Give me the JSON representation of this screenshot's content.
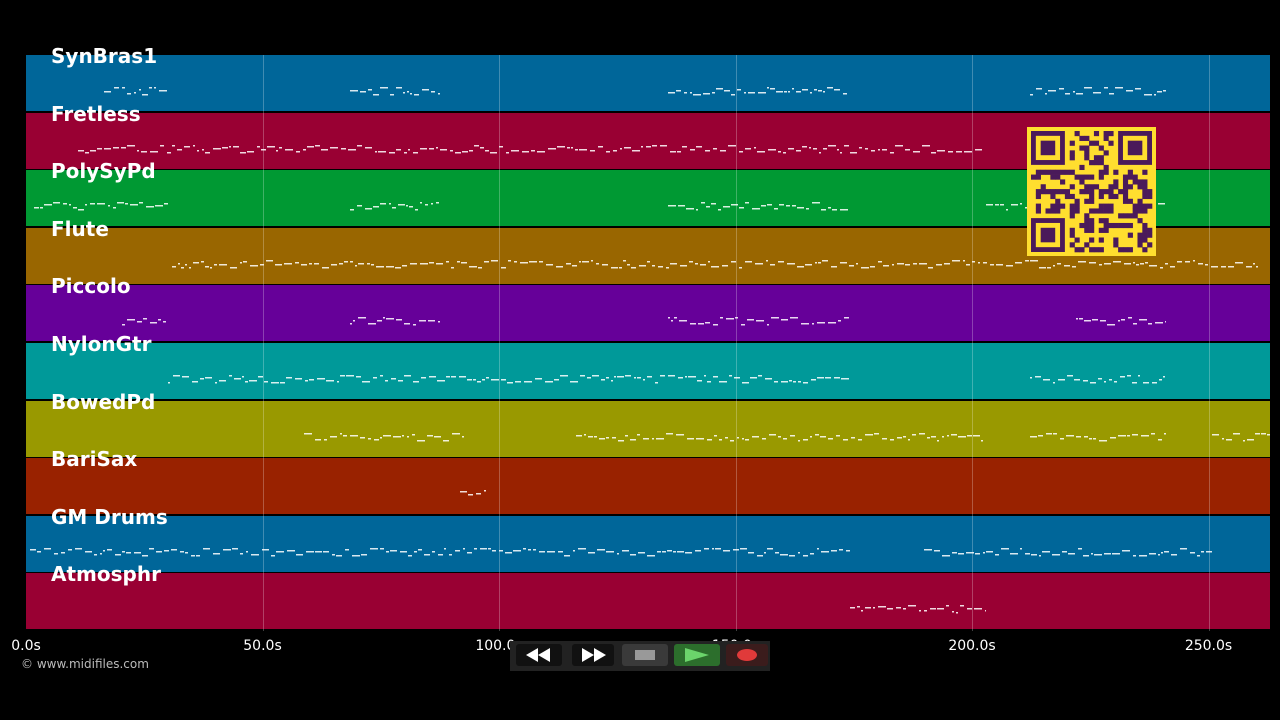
{
  "tracks": [
    {
      "name": "SynBras1",
      "color": "#006699"
    },
    {
      "name": "Fretless",
      "color": "#990033"
    },
    {
      "name": "PolySyPd",
      "color": "#009933"
    },
    {
      "name": "Flute",
      "color": "#996600"
    },
    {
      "name": "Piccolo",
      "color": "#660099"
    },
    {
      "name": "NylonGtr",
      "color": "#009999"
    },
    {
      "name": "BowedPd",
      "color": "#999900"
    },
    {
      "name": "BariSax",
      "color": "#992200"
    },
    {
      "name": "GM Drums",
      "color": "#006699"
    },
    {
      "name": "Atmosphr",
      "color": "#990033"
    }
  ],
  "timeline": {
    "ticks": [
      "0.0s",
      "50.0s",
      "100.0s",
      "150.0s",
      "200.0s",
      "250.0s"
    ]
  },
  "copyright": "© www.midifiles.com",
  "transport": {
    "buttons": [
      "rewind-icon",
      "fast-forward-icon",
      "stop-icon",
      "play-icon",
      "record-icon"
    ]
  },
  "qr_code": {
    "color": "#ffde2f",
    "module_color": "#4a1a5a"
  }
}
